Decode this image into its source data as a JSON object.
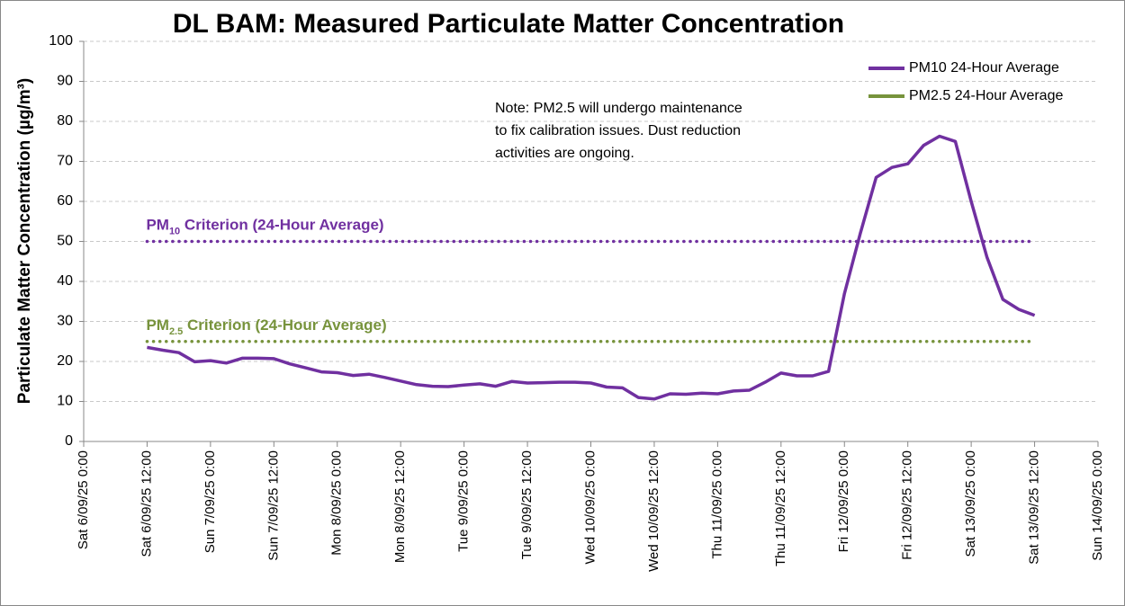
{
  "chart_data": {
    "type": "line",
    "title": "DL BAM: Measured Particulate Matter Concentration",
    "ylabel": "Particulate Matter Concentration (µg/m³)",
    "note": [
      "Note: PM2.5 will undergo maintenance",
      "to fix calibration issues. Dust reduction",
      "activities are ongoing."
    ],
    "x": [
      "2025-09-06T12:00",
      "2025-09-06T15:00",
      "2025-09-06T18:00",
      "2025-09-06T21:00",
      "2025-09-07T00:00",
      "2025-09-07T03:00",
      "2025-09-07T06:00",
      "2025-09-07T09:00",
      "2025-09-07T12:00",
      "2025-09-07T15:00",
      "2025-09-07T18:00",
      "2025-09-07T21:00",
      "2025-09-08T00:00",
      "2025-09-08T03:00",
      "2025-09-08T06:00",
      "2025-09-08T09:00",
      "2025-09-08T12:00",
      "2025-09-08T15:00",
      "2025-09-08T18:00",
      "2025-09-08T21:00",
      "2025-09-09T00:00",
      "2025-09-09T03:00",
      "2025-09-09T06:00",
      "2025-09-09T09:00",
      "2025-09-09T12:00",
      "2025-09-09T15:00",
      "2025-09-09T18:00",
      "2025-09-09T21:00",
      "2025-09-10T00:00",
      "2025-09-10T03:00",
      "2025-09-10T06:00",
      "2025-09-10T09:00",
      "2025-09-10T12:00",
      "2025-09-10T15:00",
      "2025-09-10T18:00",
      "2025-09-10T21:00",
      "2025-09-11T00:00",
      "2025-09-11T03:00",
      "2025-09-11T06:00",
      "2025-09-11T09:00",
      "2025-09-11T12:00",
      "2025-09-11T15:00",
      "2025-09-11T18:00",
      "2025-09-11T21:00",
      "2025-09-12T00:00",
      "2025-09-12T03:00",
      "2025-09-12T06:00",
      "2025-09-12T09:00",
      "2025-09-12T12:00",
      "2025-09-12T15:00",
      "2025-09-12T18:00",
      "2025-09-12T21:00",
      "2025-09-13T00:00",
      "2025-09-13T03:00",
      "2025-09-13T06:00",
      "2025-09-13T09:00",
      "2025-09-13T12:00"
    ],
    "series": [
      {
        "name": "PM10 24-Hour Average",
        "color": "#7030a0",
        "values": [
          23.5,
          22.8,
          22.2,
          19.9,
          20.2,
          19.6,
          20.8,
          20.8,
          20.7,
          19.4,
          18.4,
          17.4,
          17.2,
          16.5,
          16.8,
          16,
          15.1,
          14.2,
          13.8,
          13.7,
          14.1,
          14.4,
          13.8,
          15,
          14.6,
          14.7,
          14.8,
          14.8,
          14.6,
          13.6,
          13.4,
          11,
          10.6,
          11.9,
          11.8,
          12.1,
          11.9,
          12.6,
          12.8,
          14.8,
          17.1,
          16.4,
          16.4,
          17.5,
          37,
          52,
          66,
          68.5,
          69.4,
          74,
          76.3,
          75,
          60,
          46,
          35.5,
          33,
          31.5
        ]
      },
      {
        "name": "PM2.5 24-Hour Average",
        "color": "#77933c",
        "values": [
          null,
          null,
          null,
          null,
          null,
          null,
          null,
          null,
          null,
          null,
          null,
          null,
          null,
          null,
          null,
          null,
          null,
          null,
          null,
          null,
          null,
          null,
          null,
          null,
          null,
          null,
          null,
          null,
          null,
          null,
          null,
          null,
          null,
          null,
          null,
          null,
          null,
          null,
          null,
          null,
          null,
          null,
          null,
          null,
          null,
          null,
          null,
          null,
          null,
          null,
          null,
          null,
          null,
          null,
          null,
          null,
          null
        ]
      }
    ],
    "criteria": [
      {
        "label_main": "PM",
        "label_sub": "10",
        "label_rest": " Criterion (24-Hour Average)",
        "value": 50,
        "color": "#7030a0"
      },
      {
        "label_main": "PM",
        "label_sub": "2.5",
        "label_rest": " Criterion (24-Hour Average)",
        "value": 25,
        "color": "#77933c"
      }
    ],
    "xlim": [
      "2025-09-06T00:00",
      "2025-09-14T00:00"
    ],
    "xticks": [
      {
        "value": "2025-09-06T00:00",
        "label": "Sat 6/09/25 0:00"
      },
      {
        "value": "2025-09-06T12:00",
        "label": "Sat 6/09/25 12:00"
      },
      {
        "value": "2025-09-07T00:00",
        "label": "Sun 7/09/25 0:00"
      },
      {
        "value": "2025-09-07T12:00",
        "label": "Sun 7/09/25 12:00"
      },
      {
        "value": "2025-09-08T00:00",
        "label": "Mon 8/09/25 0:00"
      },
      {
        "value": "2025-09-08T12:00",
        "label": "Mon 8/09/25 12:00"
      },
      {
        "value": "2025-09-09T00:00",
        "label": "Tue 9/09/25 0:00"
      },
      {
        "value": "2025-09-09T12:00",
        "label": "Tue 9/09/25 12:00"
      },
      {
        "value": "2025-09-10T00:00",
        "label": "Wed 10/09/25 0:00"
      },
      {
        "value": "2025-09-10T12:00",
        "label": "Wed 10/09/25 12:00"
      },
      {
        "value": "2025-09-11T00:00",
        "label": "Thu 11/09/25 0:00"
      },
      {
        "value": "2025-09-11T12:00",
        "label": "Thu 11/09/25 12:00"
      },
      {
        "value": "2025-09-12T00:00",
        "label": "Fri 12/09/25 0:00"
      },
      {
        "value": "2025-09-12T12:00",
        "label": "Fri 12/09/25 12:00"
      },
      {
        "value": "2025-09-13T00:00",
        "label": "Sat 13/09/25 0:00"
      },
      {
        "value": "2025-09-13T12:00",
        "label": "Sat 13/09/25 12:00"
      },
      {
        "value": "2025-09-14T00:00",
        "label": "Sun 14/09/25 0:00"
      }
    ],
    "ylim": [
      0,
      100
    ],
    "yticks": [
      0,
      10,
      20,
      30,
      40,
      50,
      60,
      70,
      80,
      90,
      100
    ],
    "grid": true,
    "legend": "top-right"
  }
}
